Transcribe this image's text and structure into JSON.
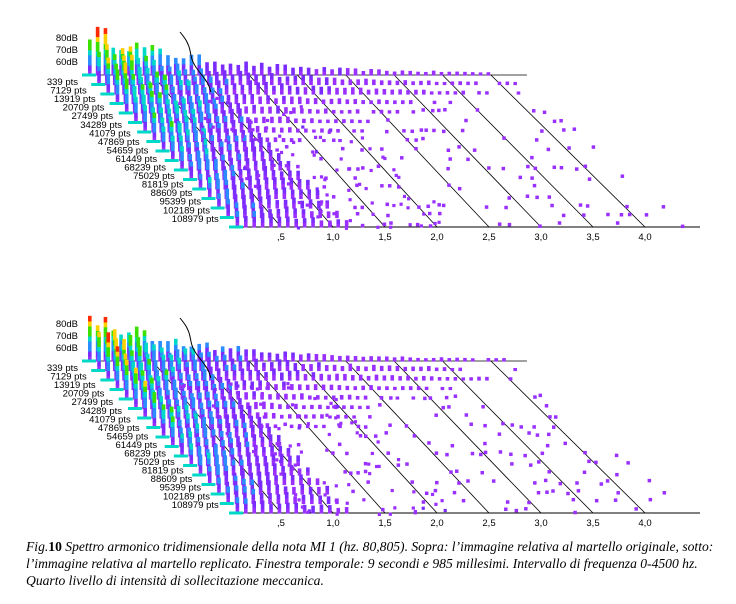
{
  "chart_data": [
    {
      "type": "waterfall",
      "z_tick_labels": [
        "80dB",
        "70dB",
        "60dB"
      ],
      "slice_labels": [
        "339 pts",
        "7129 pts",
        "13919 pts",
        "20709 pts",
        "27499 pts",
        "34289 pts",
        "41079 pts",
        "47869 pts",
        "54659 pts",
        "61449 pts",
        "68239 pts",
        "75029 pts",
        "81819 pts",
        "88609 pts",
        "95399 pts",
        "102189 pts",
        "108979 pts"
      ],
      "x_tick_labels": [
        ",5",
        "1,0",
        "1,5",
        "2,0",
        "2,5",
        "3,0",
        "3,5",
        "4,0"
      ],
      "x_values": [
        0.5,
        1.0,
        1.5,
        2.0,
        2.5,
        3.0,
        3.5,
        4.0
      ],
      "xlim": [
        0,
        4.5
      ],
      "zlim": [
        60,
        85
      ],
      "colormap": [
        "#ff2a00",
        "#ffd000",
        "#39e000",
        "#00d8c8",
        "#2a8cff",
        "#7a2cff",
        "#9a30ff"
      ]
    },
    {
      "type": "waterfall",
      "z_tick_labels": [
        "80dB",
        "70dB",
        "60dB"
      ],
      "slice_labels": [
        "339 pts",
        "7129 pts",
        "13919 pts",
        "20709 pts",
        "27499 pts",
        "34289 pts",
        "41079 pts",
        "47869 pts",
        "54659 pts",
        "61449 pts",
        "68239 pts",
        "75029 pts",
        "81819 pts",
        "88609 pts",
        "95399 pts",
        "102189 pts",
        "108979 pts"
      ],
      "x_tick_labels": [
        ",5",
        "1,0",
        "1,5",
        "2,0",
        "2,5",
        "3,0",
        "3,5",
        "4,0"
      ],
      "x_values": [
        0.5,
        1.0,
        1.5,
        2.0,
        2.5,
        3.0,
        3.5,
        4.0
      ],
      "xlim": [
        0,
        4.5
      ],
      "zlim": [
        60,
        85
      ],
      "colormap": [
        "#ff2a00",
        "#ffd000",
        "#39e000",
        "#00d8c8",
        "#2a8cff",
        "#7a2cff",
        "#9a30ff"
      ]
    }
  ],
  "caption": {
    "fig_label": "Fig.",
    "fig_number": "10",
    "text": " Spettro armonico tridimensionale della nota MI 1 (hz. 80,805). Sopra: l’immagine relativa al martello originale, sotto: l’immagine relativa al martello replicato. Finestra temporale: 9 secondi e 985 millesimi. Intervallo di frequenza 0-4500 hz. Quarto livello di intensità di sollecitazione meccanica."
  }
}
